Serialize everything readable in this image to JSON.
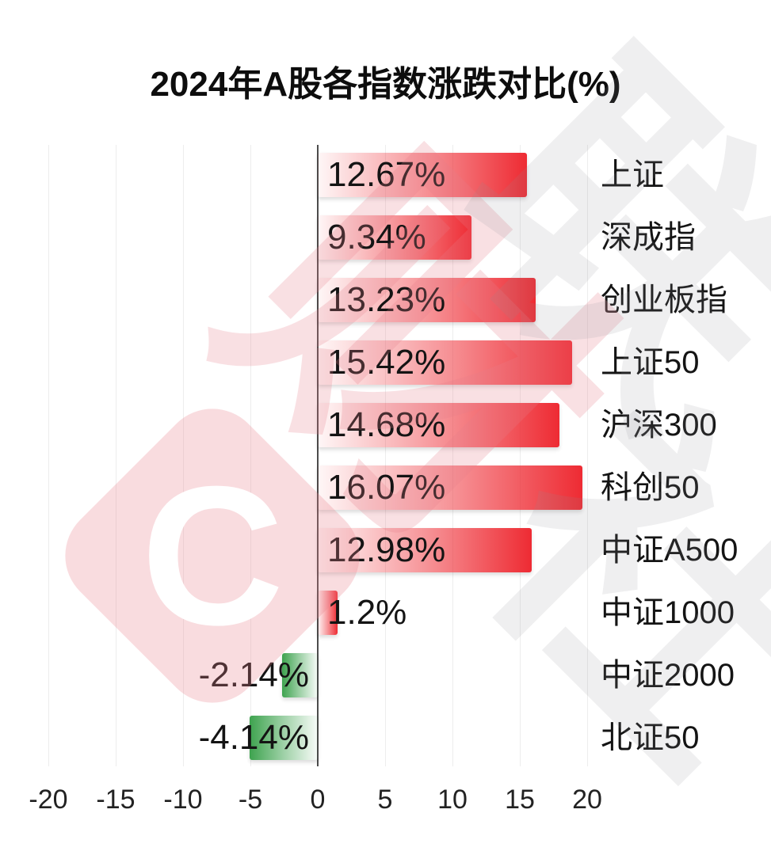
{
  "title": "2024年A股各指数涨跌对比(%)",
  "watermark": {
    "logo_glyph": "C",
    "characters": [
      "财",
      "联",
      "社"
    ],
    "pink": "rgba(231,126,138,0.24)",
    "gray": "rgba(140,140,152,0.14)",
    "logo_bg": "rgba(233,128,140,0.28)"
  },
  "colors": {
    "up": "#ee2b33",
    "down": "#3ea34f",
    "axis_line": "#4c4c4c",
    "gridline": "#ededed",
    "text": "#141414"
  },
  "chart_data": {
    "type": "bar",
    "orientation": "horizontal",
    "title": "2024年A股各指数涨跌对比(%)",
    "categories": [
      "上证",
      "深成指",
      "创业板指",
      "上证50",
      "沪深300",
      "科创50",
      "中证A500",
      "中证1000",
      "中证2000",
      "北证50"
    ],
    "values": [
      12.67,
      9.34,
      13.23,
      15.42,
      14.68,
      16.07,
      12.98,
      1.2,
      -2.14,
      -4.14
    ],
    "value_labels": [
      "12.67%",
      "9.34%",
      "13.23%",
      "15.42%",
      "14.68%",
      "16.07%",
      "12.98%",
      "1.2%",
      "-2.14%",
      "-4.14%"
    ],
    "x_ticks": [
      -20,
      -15,
      -10,
      -5,
      0,
      5,
      10,
      15,
      20
    ],
    "xlim": [
      -22,
      27
    ],
    "grid": true,
    "legend": "none",
    "up_color": "#ee2b33",
    "down_color": "#3ea34f"
  }
}
